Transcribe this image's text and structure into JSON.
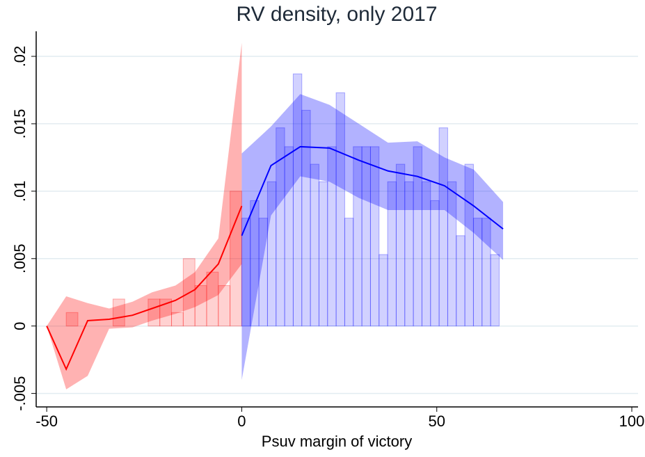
{
  "chart_data": {
    "type": "density",
    "title": "RV density, only 2017",
    "x_label": "Psuv margin of victory",
    "xlim": [
      -52.7,
      101.6
    ],
    "ylim": [
      -0.006,
      0.0216
    ],
    "xticks": [
      -50,
      0,
      50,
      100
    ],
    "yticks": [
      {
        "value": -0.005,
        "label": "-.005"
      },
      0,
      {
        "value": 0.005,
        "label": ".005"
      },
      {
        "value": 0.01,
        "label": ".01"
      },
      {
        "value": 0.015,
        "label": ".015"
      },
      {
        "value": 0.02,
        "label": ".02"
      }
    ],
    "grid": true,
    "series": [
      {
        "kind": "histogram",
        "color": "#ff0000",
        "bins": [
          -48,
          -45,
          -42,
          -39,
          -36,
          -33,
          -30,
          -27,
          -24,
          -21,
          -18,
          -15,
          -12,
          -9,
          -6,
          -3,
          0
        ],
        "values": [
          0,
          0.001,
          0,
          0,
          0,
          0.002,
          0,
          0,
          0.002,
          0.002,
          0.001,
          0.005,
          0.003,
          0.004,
          0.003,
          0.01
        ]
      },
      {
        "kind": "histogram",
        "color": "#0000ff",
        "bins": [
          0,
          2.2,
          4.4,
          6.6,
          8.8,
          11,
          13.2,
          15.4,
          17.6,
          19.8,
          22,
          24.2,
          26.4,
          28.6,
          30.8,
          33,
          35.2,
          37.4,
          39.6,
          41.8,
          44,
          46.2,
          48.4,
          50.6,
          52.8,
          55,
          57.2,
          59.4,
          61.6,
          63.8,
          66
        ],
        "values": [
          0.008,
          0.0093,
          0.008,
          0.0107,
          0.0147,
          0.0133,
          0.0187,
          0.016,
          0.012,
          0.0107,
          0.0133,
          0.0173,
          0.008,
          0.0133,
          0.0133,
          0.0133,
          0.0053,
          0.0107,
          0.012,
          0.0107,
          0.0133,
          0.0107,
          0.0093,
          0.0147,
          0.0107,
          0.0067,
          0.012,
          0.008,
          0.008,
          0.0053
        ]
      },
      {
        "kind": "band",
        "color": "#ff0000",
        "x": [
          -50,
          -45,
          -39.5,
          -34,
          -28,
          -23,
          -17,
          -12,
          -6,
          0
        ],
        "lower": [
          0,
          -0.0047,
          -0.0037,
          -0.0002,
          -0.0001,
          0.0004,
          0.0009,
          0.0014,
          0.0023,
          0.0046
        ],
        "upper": [
          0,
          0.0022,
          0.0017,
          0.0013,
          0.0018,
          0.0025,
          0.003,
          0.004,
          0.0065,
          0.021
        ]
      },
      {
        "kind": "band",
        "color": "#0000ff",
        "x": [
          0,
          7.5,
          15,
          22.5,
          30,
          37.5,
          45,
          52,
          59.5,
          67
        ],
        "lower": [
          -0.004,
          0.0082,
          0.0111,
          0.0107,
          0.0095,
          0.0086,
          0.0086,
          0.0086,
          0.0069,
          0.0049
        ],
        "upper": [
          0.0128,
          0.0148,
          0.0172,
          0.0164,
          0.015,
          0.0136,
          0.0137,
          0.0125,
          0.0116,
          0.0092
        ]
      },
      {
        "kind": "line",
        "color": "#ff0000",
        "x": [
          -50,
          -45,
          -39.5,
          -34,
          -28,
          -23,
          -17,
          -12,
          -6,
          0
        ],
        "values": [
          0,
          -0.0032,
          0.0004,
          0.0005,
          0.0008,
          0.0013,
          0.0019,
          0.0027,
          0.0046,
          0.0089
        ]
      },
      {
        "kind": "line",
        "color": "#0000ff",
        "x": [
          0,
          7.5,
          15,
          22.5,
          30,
          37.5,
          45,
          52,
          59.5,
          67
        ],
        "values": [
          0.0067,
          0.0119,
          0.0133,
          0.0132,
          0.0123,
          0.0115,
          0.0111,
          0.0104,
          0.0089,
          0.0072
        ]
      }
    ]
  }
}
